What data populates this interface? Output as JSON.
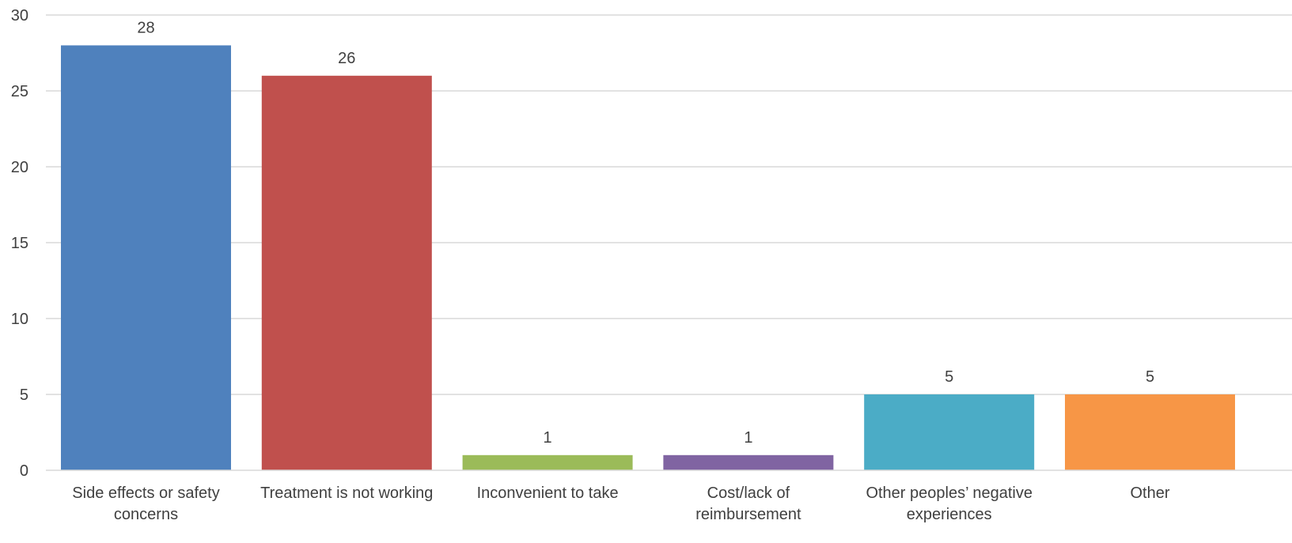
{
  "chart_data": {
    "type": "bar",
    "title": "",
    "xlabel": "",
    "ylabel": "",
    "ylim": [
      0,
      30
    ],
    "yticks": [
      "0",
      "5",
      "10",
      "15",
      "20",
      "25",
      "30"
    ],
    "grid": true,
    "legend": "none",
    "categories": [
      [
        "Side effects or safety",
        "concerns"
      ],
      [
        "Treatment is not working"
      ],
      [
        "Inconvenient to take"
      ],
      [
        "Cost/lack of",
        "reimbursement"
      ],
      [
        "Other peoples’ negative",
        "experiences"
      ],
      [
        "Other"
      ]
    ],
    "values": [
      28,
      26,
      1,
      1,
      5,
      5
    ],
    "data_labels": [
      "28",
      "26",
      "1",
      "1",
      "5",
      "5"
    ],
    "colors": [
      "#4f81bd",
      "#c0504d",
      "#9bbb59",
      "#8064a2",
      "#4bacc6",
      "#f79646"
    ]
  }
}
